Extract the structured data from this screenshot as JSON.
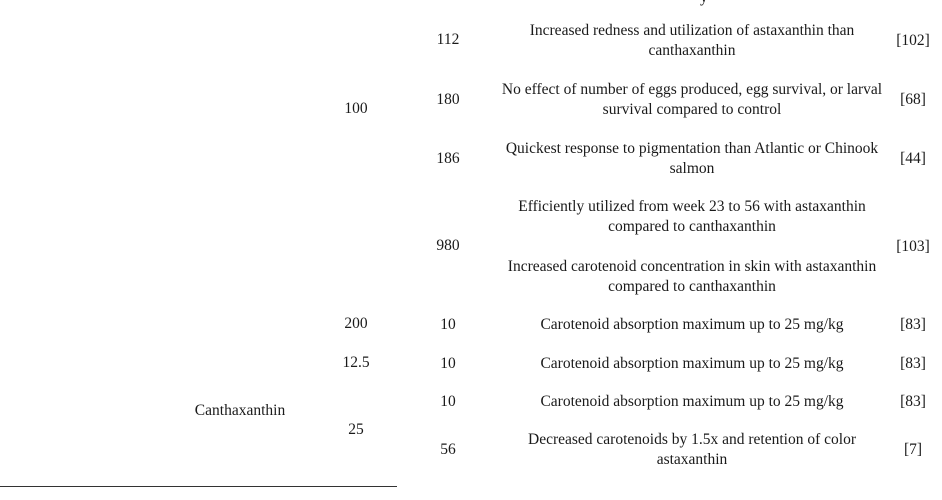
{
  "table": {
    "header_fragment": "y",
    "treatments": [
      {
        "name": "",
        "doses": [
          "100",
          "200"
        ]
      },
      {
        "name": "Canthaxanthin",
        "doses": [
          "12.5",
          "25"
        ]
      }
    ],
    "rows": [
      {
        "duration": "112",
        "effects": [
          "Increased redness and utilization of astaxanthin than canthaxanthin"
        ],
        "ref": "[102]"
      },
      {
        "duration": "180",
        "effects": [
          "No effect of number of eggs produced, egg survival, or larval survival compared to control"
        ],
        "ref": "[68]"
      },
      {
        "duration": "186",
        "effects": [
          "Quickest response to pigmentation than Atlantic or Chinook salmon"
        ],
        "ref": "[44]"
      },
      {
        "duration": "980",
        "effects": [
          "Efficiently utilized from week 23 to 56 with astaxanthin compared to canthaxanthin",
          "Increased carotenoid concentration in skin with astaxanthin compared to canthaxanthin"
        ],
        "ref": "[103]"
      },
      {
        "duration": "10",
        "effects": [
          "Carotenoid absorption maximum up to 25 mg/kg"
        ],
        "ref": "[83]"
      },
      {
        "duration": "10",
        "effects": [
          "Carotenoid absorption maximum up to 25 mg/kg"
        ],
        "ref": "[83]"
      },
      {
        "duration": "10",
        "effects": [
          "Carotenoid absorption maximum up to 25 mg/kg"
        ],
        "ref": "[83]"
      },
      {
        "duration": "56",
        "effects": [
          "Decreased carotenoids by 1.5x and retention of color astaxanthin"
        ],
        "ref": "[7]"
      }
    ]
  }
}
